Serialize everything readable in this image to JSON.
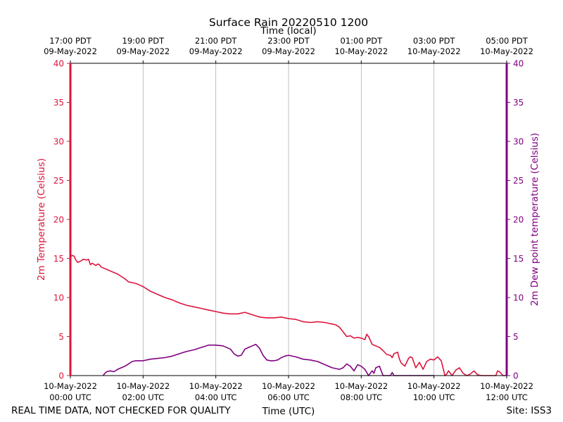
{
  "chart_data": {
    "type": "line",
    "title": "Surface Rain 20220510 1200",
    "top_axis_label": "Time (local)",
    "xlabel": "Time (UTC)",
    "ylabel_left": "2m Temperature (Celsius)",
    "ylabel_right": "2m Dew point temperature (Celsius)",
    "footer_left": "REAL TIME DATA, NOT CHECKED FOR QUALITY",
    "footer_right": "Site: ISS3",
    "xlim": [
      0,
      12
    ],
    "ylim": [
      0,
      40
    ],
    "yticks": [
      "0",
      "5",
      "10",
      "15",
      "20",
      "25",
      "30",
      "35",
      "40"
    ],
    "bottom_ticks": [
      {
        "hours": 0,
        "line1": "10-May-2022",
        "line2": "00:00 UTC"
      },
      {
        "hours": 2,
        "line1": "10-May-2022",
        "line2": "02:00 UTC"
      },
      {
        "hours": 4,
        "line1": "10-May-2022",
        "line2": "04:00 UTC"
      },
      {
        "hours": 6,
        "line1": "10-May-2022",
        "line2": "06:00 UTC"
      },
      {
        "hours": 8,
        "line1": "10-May-2022",
        "line2": "08:00 UTC"
      },
      {
        "hours": 10,
        "line1": "10-May-2022",
        "line2": "10:00 UTC"
      },
      {
        "hours": 12,
        "line1": "10-May-2022",
        "line2": "12:00 UTC"
      }
    ],
    "top_ticks": [
      {
        "hours": 0,
        "line1": "17:00 PDT",
        "line2": "09-May-2022"
      },
      {
        "hours": 2,
        "line1": "19:00 PDT",
        "line2": "09-May-2022"
      },
      {
        "hours": 4,
        "line1": "21:00 PDT",
        "line2": "09-May-2022"
      },
      {
        "hours": 6,
        "line1": "23:00 PDT",
        "line2": "09-May-2022"
      },
      {
        "hours": 8,
        "line1": "01:00 PDT",
        "line2": "10-May-2022"
      },
      {
        "hours": 10,
        "line1": "03:00 PDT",
        "line2": "10-May-2022"
      },
      {
        "hours": 12,
        "line1": "05:00 PDT",
        "line2": "10-May-2022"
      }
    ],
    "colors": {
      "temperature": "#dc143c",
      "dewpoint": "#800080",
      "grid": "#b0b0b0"
    },
    "series": [
      {
        "name": "2m Temperature",
        "axis": "left",
        "x": [
          0,
          0.05,
          0.1,
          0.15,
          0.2,
          0.3,
          0.35,
          0.45,
          0.5,
          0.55,
          0.6,
          0.7,
          0.75,
          0.8,
          0.85,
          0.9,
          1.0,
          1.1,
          1.2,
          1.3,
          1.4,
          1.5,
          1.6,
          1.7,
          1.8,
          1.9,
          2.0,
          2.1,
          2.2,
          2.4,
          2.6,
          2.8,
          3.0,
          3.2,
          3.4,
          3.6,
          3.8,
          4.0,
          4.2,
          4.4,
          4.6,
          4.8,
          5.0,
          5.2,
          5.4,
          5.6,
          5.8,
          6.0,
          6.2,
          6.4,
          6.6,
          6.8,
          7.0,
          7.1,
          7.2,
          7.3,
          7.4,
          7.5,
          7.6,
          7.7,
          7.8,
          7.9,
          8.0,
          8.1,
          8.15,
          8.2,
          8.25,
          8.3,
          8.4,
          8.5,
          8.6,
          8.7,
          8.8,
          8.85,
          8.9,
          9.0,
          9.05,
          9.1,
          9.15,
          9.2,
          9.3,
          9.35,
          9.4,
          9.5,
          9.6,
          9.7,
          9.8,
          9.9,
          10.0,
          10.05,
          10.1,
          10.2,
          10.3,
          10.35,
          10.4,
          10.5,
          10.6,
          10.7,
          10.8,
          10.9,
          11.0,
          11.1,
          11.2,
          11.3,
          11.4,
          11.5,
          11.6,
          11.7,
          11.75,
          11.8,
          11.9,
          12.0
        ],
        "y": [
          15.2,
          15.4,
          15.3,
          14.8,
          14.5,
          14.7,
          14.9,
          14.8,
          14.9,
          14.2,
          14.4,
          14.1,
          14.3,
          14.2,
          13.9,
          13.8,
          13.6,
          13.4,
          13.2,
          13.0,
          12.7,
          12.4,
          12.0,
          11.9,
          11.8,
          11.6,
          11.4,
          11.1,
          10.8,
          10.4,
          10.0,
          9.7,
          9.3,
          9.0,
          8.8,
          8.6,
          8.4,
          8.2,
          8.0,
          7.9,
          7.9,
          8.1,
          7.8,
          7.5,
          7.4,
          7.4,
          7.5,
          7.3,
          7.2,
          6.9,
          6.8,
          6.9,
          6.8,
          6.7,
          6.6,
          6.5,
          6.2,
          5.6,
          5.0,
          5.1,
          4.8,
          4.9,
          4.8,
          4.6,
          5.3,
          5.0,
          4.5,
          4.0,
          3.8,
          3.6,
          3.2,
          2.7,
          2.6,
          2.3,
          2.8,
          3.0,
          2.1,
          1.6,
          1.4,
          1.2,
          2.2,
          2.4,
          2.3,
          1.0,
          1.7,
          0.8,
          1.8,
          2.1,
          2.0,
          2.2,
          2.4,
          1.9,
          0.0,
          0.2,
          0.6,
          0.0,
          0.7,
          1.0,
          0.3,
          0.0,
          0.2,
          0.6,
          0.1,
          0.0,
          0.0,
          0.0,
          0.0,
          0.0,
          0.6,
          0.5,
          0.0,
          0.0
        ]
      },
      {
        "name": "2m Dew point temperature",
        "axis": "right",
        "x": [
          0.9,
          0.95,
          1.0,
          1.1,
          1.2,
          1.3,
          1.4,
          1.5,
          1.6,
          1.7,
          1.8,
          1.9,
          2.0,
          2.2,
          2.4,
          2.6,
          2.8,
          3.0,
          3.2,
          3.4,
          3.6,
          3.8,
          4.0,
          4.2,
          4.4,
          4.5,
          4.6,
          4.7,
          4.8,
          4.9,
          5.0,
          5.1,
          5.2,
          5.3,
          5.4,
          5.5,
          5.6,
          5.7,
          5.8,
          5.9,
          6.0,
          6.2,
          6.4,
          6.6,
          6.8,
          7.0,
          7.2,
          7.4,
          7.5,
          7.6,
          7.7,
          7.8,
          7.9,
          8.0,
          8.1,
          8.2,
          8.3,
          8.35,
          8.4,
          8.5,
          8.6,
          8.65,
          8.7,
          8.8,
          8.85,
          8.9,
          9.0,
          9.05,
          9.1,
          9.2,
          9.3,
          9.35,
          9.4,
          9.5,
          9.6,
          9.7,
          9.8,
          9.9,
          10.0
        ],
        "y": [
          0.0,
          0.3,
          0.5,
          0.6,
          0.5,
          0.8,
          1.0,
          1.2,
          1.5,
          1.8,
          1.9,
          1.9,
          1.9,
          2.1,
          2.2,
          2.3,
          2.5,
          2.8,
          3.1,
          3.3,
          3.6,
          3.9,
          3.9,
          3.8,
          3.4,
          2.8,
          2.5,
          2.6,
          3.4,
          3.6,
          3.8,
          4.0,
          3.5,
          2.6,
          2.0,
          1.9,
          1.9,
          2.0,
          2.3,
          2.5,
          2.6,
          2.4,
          2.1,
          2.0,
          1.8,
          1.4,
          1.0,
          0.8,
          1.0,
          1.5,
          1.2,
          0.6,
          1.4,
          1.2,
          0.8,
          0.0,
          0.6,
          0.3,
          1.0,
          1.2,
          0.0,
          0.0,
          0.0,
          0.0,
          0.4,
          0.0,
          0.0,
          0.0,
          0.0,
          0.0,
          0.0,
          0.0,
          0.0,
          0.0,
          0.0,
          0.0,
          0.0,
          0.0,
          0.0
        ]
      }
    ]
  }
}
